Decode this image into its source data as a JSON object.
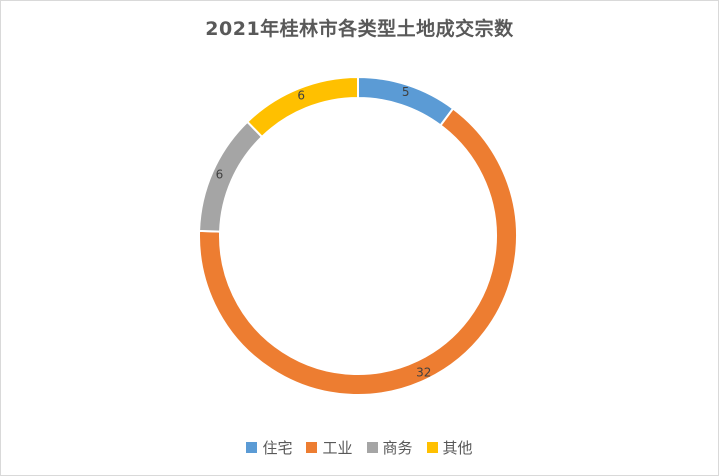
{
  "chart_data": {
    "type": "pie",
    "variant": "donut",
    "title": "2021年桂林市各类型土地成交宗数",
    "categories": [
      "住宅",
      "工业",
      "商务",
      "其他"
    ],
    "values": [
      5,
      32,
      6,
      6
    ],
    "data_labels": [
      "5",
      "32",
      "6",
      "6"
    ],
    "colors": [
      "#5b9bd5",
      "#ed7d31",
      "#a5a5a5",
      "#ffc000"
    ],
    "legend_position": "bottom"
  }
}
